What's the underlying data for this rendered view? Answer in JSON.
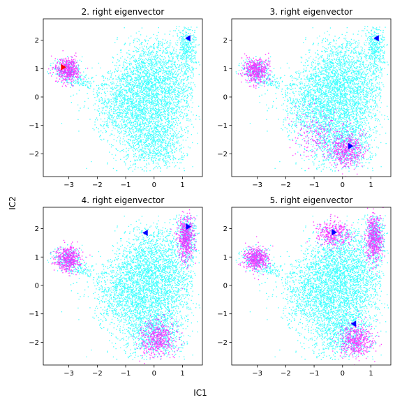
{
  "figure": {
    "supxlabel": "IC1",
    "supylabel": "IC2"
  },
  "colors": {
    "background_points": "#00ffff",
    "highlight_points": "#ff00ff",
    "marker_blue": "#0000ff",
    "marker_red": "#ff0000",
    "axes_edge": "#000000"
  },
  "chart_data": [
    {
      "type": "scatter",
      "title": "2. right eigenvector",
      "xlim": [
        -3.9,
        1.7
      ],
      "ylim": [
        -2.8,
        2.75
      ],
      "xticks": [
        -3,
        -2,
        -1,
        0,
        1
      ],
      "yticks": [
        -2,
        -1,
        0,
        1,
        2
      ],
      "highlight_clusters": [
        {
          "name": "",
          "center": [
            -3.05,
            0.95
          ]
        }
      ],
      "markers": [
        {
          "x": -3.2,
          "y": 1.05,
          "color": "red",
          "symbol": "triangle-right"
        },
        {
          "x": 1.2,
          "y": 2.07,
          "color": "blue",
          "symbol": "triangle-left"
        }
      ]
    },
    {
      "type": "scatter",
      "title": "3. right eigenvector",
      "xlim": [
        -3.9,
        1.7
      ],
      "ylim": [
        -2.8,
        2.75
      ],
      "xticks": [
        -3,
        -2,
        -1,
        0,
        1
      ],
      "yticks": [
        -2,
        -1,
        0,
        1,
        2
      ],
      "highlight_clusters": [
        {
          "name": "",
          "center": [
            -3.05,
            0.95
          ]
        },
        {
          "name": "",
          "center": [
            0.15,
            -1.85
          ]
        },
        {
          "name": "",
          "center": [
            -1.0,
            -1.3
          ]
        }
      ],
      "markers": [
        {
          "x": 1.2,
          "y": 2.07,
          "color": "blue",
          "symbol": "triangle-left"
        },
        {
          "x": 0.28,
          "y": -1.73,
          "color": "blue",
          "symbol": "triangle-right"
        }
      ]
    },
    {
      "type": "scatter",
      "title": "4. right eigenvector",
      "xlim": [
        -3.9,
        1.7
      ],
      "ylim": [
        -2.8,
        2.75
      ],
      "xticks": [
        -3,
        -2,
        -1,
        0,
        1
      ],
      "yticks": [
        -2,
        -1,
        0,
        1,
        2
      ],
      "highlight_clusters": [
        {
          "name": "",
          "center": [
            -3.05,
            0.95
          ]
        },
        {
          "name": "",
          "center": [
            1.1,
            1.65
          ]
        },
        {
          "name": "",
          "center": [
            0.15,
            -1.85
          ]
        }
      ],
      "markers": [
        {
          "x": -0.3,
          "y": 1.85,
          "color": "blue",
          "symbol": "triangle-left"
        },
        {
          "x": 1.2,
          "y": 2.07,
          "color": "blue",
          "symbol": "triangle-right"
        }
      ]
    },
    {
      "type": "scatter",
      "title": "5. right eigenvector",
      "xlim": [
        -3.9,
        1.7
      ],
      "ylim": [
        -2.8,
        2.75
      ],
      "xticks": [
        -3,
        -2,
        -1,
        0,
        1
      ],
      "yticks": [
        -2,
        -1,
        0,
        1,
        2
      ],
      "highlight_clusters": [
        {
          "name": "",
          "center": [
            -3.05,
            0.95
          ]
        },
        {
          "name": "",
          "center": [
            1.1,
            1.65
          ]
        },
        {
          "name": "",
          "center": [
            -0.35,
            1.85
          ]
        },
        {
          "name": "",
          "center": [
            0.45,
            -1.9
          ]
        }
      ],
      "markers": [
        {
          "x": -0.3,
          "y": 1.87,
          "color": "blue",
          "symbol": "triangle-right"
        },
        {
          "x": 0.4,
          "y": -1.35,
          "color": "blue",
          "symbol": "triangle-left"
        }
      ]
    }
  ]
}
